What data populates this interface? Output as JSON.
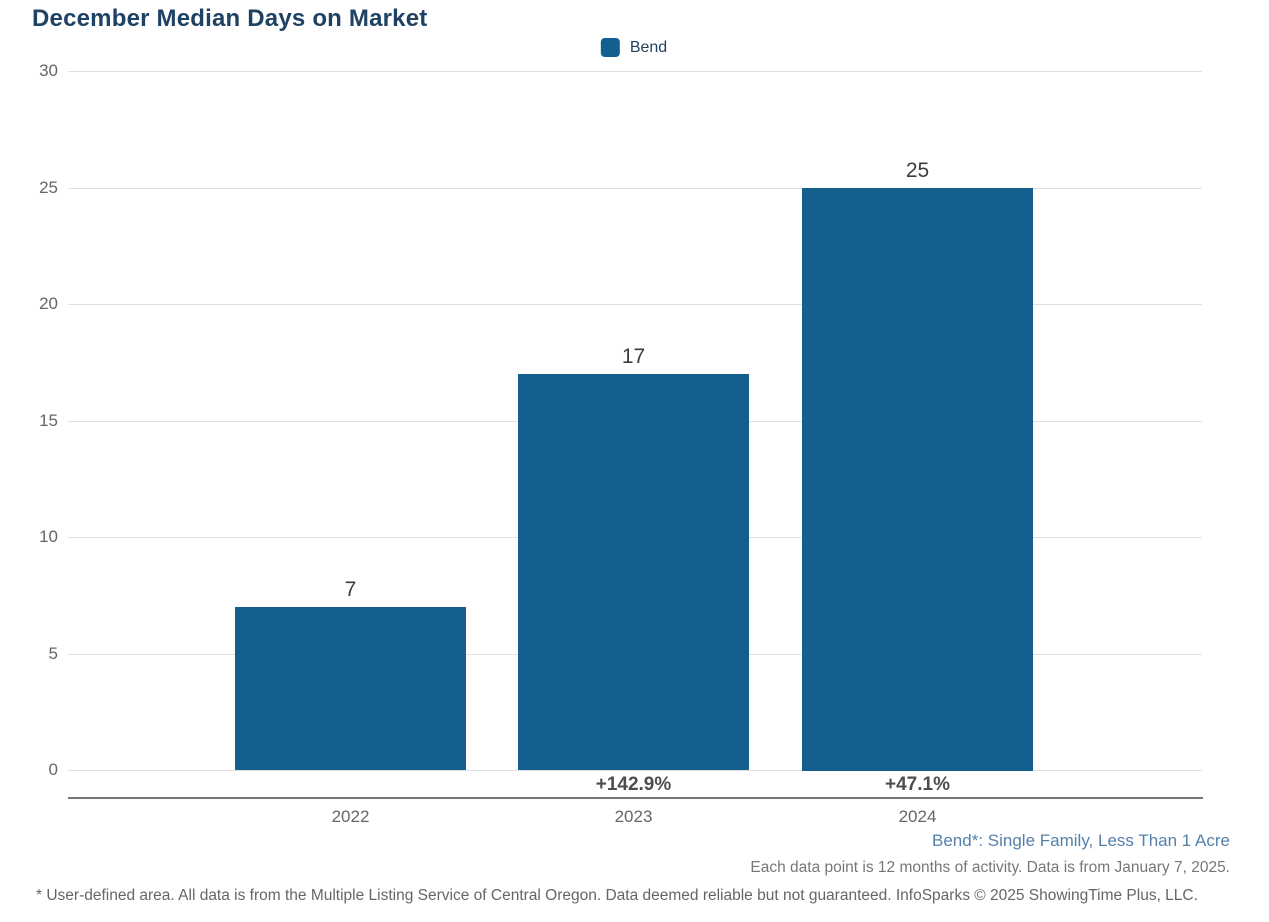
{
  "chart_data": {
    "type": "bar",
    "title": "December Median Days on Market",
    "categories": [
      "2022",
      "2023",
      "2024"
    ],
    "series": [
      {
        "name": "Bend",
        "values": [
          7,
          17,
          25
        ]
      }
    ],
    "values": [
      7,
      17,
      25
    ],
    "value_labels": [
      "7",
      "17",
      "25"
    ],
    "pct_change_labels": [
      "",
      "+142.9%",
      "+47.1%"
    ],
    "xlabel": "",
    "ylabel": "",
    "ylim": [
      0,
      30
    ],
    "yticks": [
      0,
      5,
      10,
      15,
      20,
      25,
      30
    ],
    "grid": true,
    "legend_entries": [
      "Bend"
    ],
    "legend_position": "top-center",
    "bar_color": "#13608f"
  },
  "legend": {
    "label": "Bend"
  },
  "colors": {
    "bar": "#13608f",
    "title": "#1e4164",
    "area_note": "#5580ab",
    "axis_text": "#666666"
  },
  "footnotes": {
    "area_note": "Bend*: Single Family, Less Than 1 Acre",
    "data_note": "Each data point is 12 months of activity. Data is from January 7, 2025.",
    "disclaimer": "* User-defined area. All data is from the Multiple Listing Service of Central Oregon. Data deemed reliable but not guaranteed. InfoSparks © 2025 ShowingTime Plus, LLC."
  }
}
